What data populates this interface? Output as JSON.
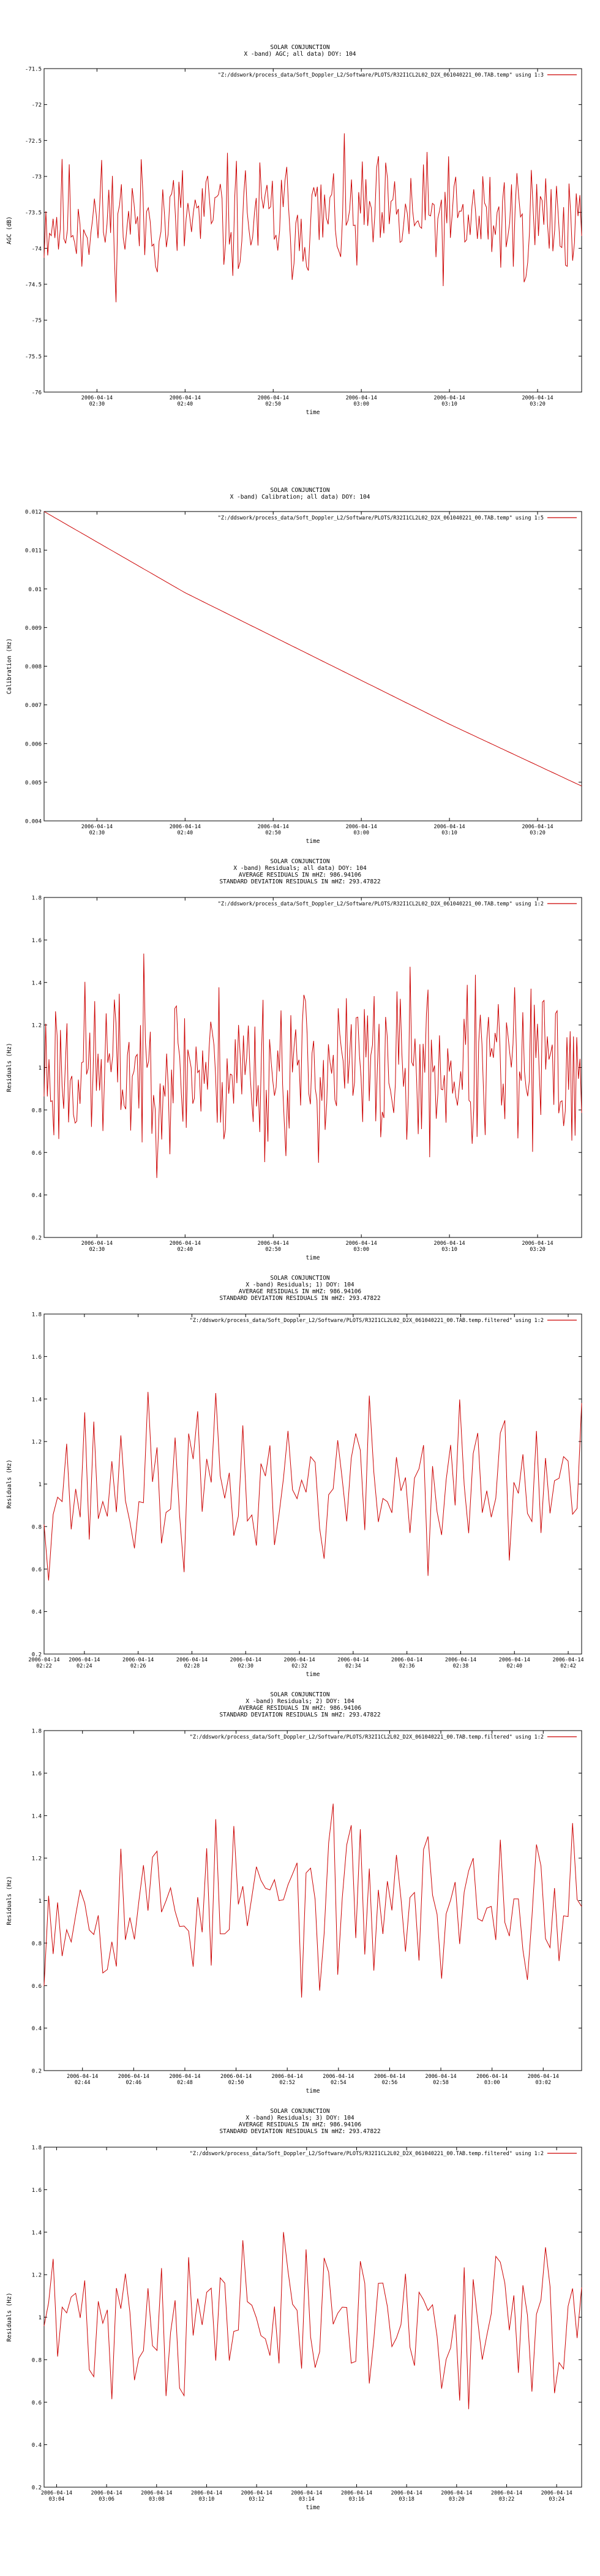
{
  "page": {
    "background": "#ffffff",
    "line_color": "#cc0000",
    "axis_color": "#000000",
    "grid_color": "#bbbbbb"
  },
  "chart_data": [
    {
      "type": "line",
      "title_lines": [
        "SOLAR CONJUNCTION",
        "X -band) AGC; all data) DOY: 104"
      ],
      "ylabel": "AGC (dB)",
      "xlabel": "time",
      "legend": "\"Z:/ddswork/process_data/Soft_Doppler_L2/Software/PLOTS/R32I1CL2L02_D2X_061040221_00.TAB.temp\" using 1:3",
      "legend_position": "top-right",
      "ylim": [
        -76,
        -71.5
      ],
      "yticks": [
        "-71.5",
        "-72",
        "-72.5",
        "-73",
        "-73.5",
        "-74",
        "-74.5",
        "-75",
        "-75.5",
        "-76"
      ],
      "xrange_minutes": [
        144,
        205
      ],
      "xticks": [
        {
          "at": 150,
          "date": "2006-04-14",
          "time": "02:30"
        },
        {
          "at": 160,
          "date": "2006-04-14",
          "time": "02:40"
        },
        {
          "at": 170,
          "date": "2006-04-14",
          "time": "02:50"
        },
        {
          "at": 180,
          "date": "2006-04-14",
          "time": "03:00"
        },
        {
          "at": 190,
          "date": "2006-04-14",
          "time": "03:10"
        },
        {
          "at": 200,
          "date": "2006-04-14",
          "time": "03:20"
        }
      ],
      "series": [
        {
          "kind": "noise",
          "mean": -73.6,
          "amp": 0.9,
          "n": 300,
          "seed": 11
        }
      ]
    },
    {
      "type": "line",
      "title_lines": [
        "SOLAR CONJUNCTION",
        "X -band) Calibration; all data) DOY: 104"
      ],
      "ylabel": "Calibration (Hz)",
      "xlabel": "time",
      "legend": "\"Z:/ddswork/process_data/Soft_Doppler_L2/Software/PLOTS/R32I1CL2L02_D2X_061040221_00.TAB.temp\" using 1:5",
      "legend_position": "top-right",
      "ylim": [
        0.004,
        0.012
      ],
      "yticks": [
        "0.012",
        "0.011",
        "0.01",
        "0.009",
        "0.008",
        "0.007",
        "0.006",
        "0.005",
        "0.004"
      ],
      "xrange_minutes": [
        144,
        205
      ],
      "xticks": [
        {
          "at": 150,
          "date": "2006-04-14",
          "time": "02:30"
        },
        {
          "at": 160,
          "date": "2006-04-14",
          "time": "02:40"
        },
        {
          "at": 170,
          "date": "2006-04-14",
          "time": "02:50"
        },
        {
          "at": 180,
          "date": "2006-04-14",
          "time": "03:00"
        },
        {
          "at": 190,
          "date": "2006-04-14",
          "time": "03:10"
        },
        {
          "at": 200,
          "date": "2006-04-14",
          "time": "03:20"
        }
      ],
      "series": [
        {
          "kind": "curve",
          "x": [
            144,
            160,
            175,
            190,
            205
          ],
          "y": [
            0.012,
            0.0099,
            0.0082,
            0.0065,
            0.0049
          ]
        }
      ]
    },
    {
      "type": "line",
      "title_lines": [
        "SOLAR CONJUNCTION",
        "X -band) Residuals; all data) DOY: 104",
        "AVERAGE RESIDUALS IN mHZ: 986.94106",
        "STANDARD DEVIATION RESIDUALS IN mHZ: 293.47822"
      ],
      "ylabel": "Residuals (Hz)",
      "xlabel": "time",
      "legend": "\"Z:/ddswork/process_data/Soft_Doppler_L2/Software/PLOTS/R32I1CL2L02_D2X_061040221_00.TAB.temp\" using 1:2",
      "legend_position": "top-right",
      "ylim": [
        0.2,
        1.8
      ],
      "yticks": [
        "1.8",
        "1.6",
        "1.4",
        "1.2",
        "1",
        "0.8",
        "0.6",
        "0.4",
        "0.2"
      ],
      "xrange_minutes": [
        144,
        205
      ],
      "xticks": [
        {
          "at": 150,
          "date": "2006-04-14",
          "time": "02:30"
        },
        {
          "at": 160,
          "date": "2006-04-14",
          "time": "02:40"
        },
        {
          "at": 170,
          "date": "2006-04-14",
          "time": "02:50"
        },
        {
          "at": 180,
          "date": "2006-04-14",
          "time": "03:00"
        },
        {
          "at": 190,
          "date": "2006-04-14",
          "time": "03:10"
        },
        {
          "at": 200,
          "date": "2006-04-14",
          "time": "03:20"
        }
      ],
      "series": [
        {
          "kind": "noise",
          "mean": 0.99,
          "amp": 0.42,
          "n": 330,
          "seed": 23
        }
      ]
    },
    {
      "type": "line",
      "title_lines": [
        "SOLAR CONJUNCTION",
        "X -band) Residuals; 1) DOY: 104",
        "AVERAGE RESIDUALS IN mHZ: 986.94106",
        "STANDARD DEVIATION RESIDUALS IN mHZ: 293.47822"
      ],
      "ylabel": "Residuals (Hz)",
      "xlabel": "time",
      "legend": "\"Z:/ddswork/process_data/Soft_Doppler_L2/Software/PLOTS/R32I1CL2L02_D2X_061040221_00.TAB.temp.filtered\" using 1:2",
      "legend_position": "top-right",
      "ylim": [
        0.2,
        1.8
      ],
      "yticks": [
        "1.8",
        "1.6",
        "1.4",
        "1.2",
        "1",
        "0.8",
        "0.6",
        "0.4",
        "0.2"
      ],
      "xrange_minutes": [
        142.5,
        162.5
      ],
      "xticks": [
        {
          "at": 142,
          "date": "2006-04-14",
          "time": "02:22"
        },
        {
          "at": 144,
          "date": "2006-04-14",
          "time": "02:24"
        },
        {
          "at": 146,
          "date": "2006-04-14",
          "time": "02:26"
        },
        {
          "at": 148,
          "date": "2006-04-14",
          "time": "02:28"
        },
        {
          "at": 150,
          "date": "2006-04-14",
          "time": "02:30"
        },
        {
          "at": 152,
          "date": "2006-04-14",
          "time": "02:32"
        },
        {
          "at": 154,
          "date": "2006-04-14",
          "time": "02:34"
        },
        {
          "at": 156,
          "date": "2006-04-14",
          "time": "02:36"
        },
        {
          "at": 158,
          "date": "2006-04-14",
          "time": "02:38"
        },
        {
          "at": 160,
          "date": "2006-04-14",
          "time": "02:40"
        },
        {
          "at": 162,
          "date": "2006-04-14",
          "time": "02:42"
        }
      ],
      "series": [
        {
          "kind": "noise",
          "mean": 0.99,
          "amp": 0.42,
          "n": 120,
          "seed": 37
        }
      ]
    },
    {
      "type": "line",
      "title_lines": [
        "SOLAR CONJUNCTION",
        "X -band) Residuals; 2) DOY: 104",
        "AVERAGE RESIDUALS IN mHZ: 986.94106",
        "STANDARD DEVIATION RESIDUALS IN mHZ: 293.47822"
      ],
      "ylabel": "Residuals (Hz)",
      "xlabel": "time",
      "legend": "\"Z:/ddswork/process_data/Soft_Doppler_L2/Software/PLOTS/R32I1CL2L02_D2X_061040221_00.TAB.temp.filtered\" using 1:2",
      "legend_position": "top-right",
      "ylim": [
        0.2,
        1.8
      ],
      "yticks": [
        "1.8",
        "1.6",
        "1.4",
        "1.2",
        "1",
        "0.8",
        "0.6",
        "0.4",
        "0.2"
      ],
      "xrange_minutes": [
        162.5,
        183.5
      ],
      "xticks": [
        {
          "at": 164,
          "date": "2006-04-14",
          "time": "02:44"
        },
        {
          "at": 166,
          "date": "2006-04-14",
          "time": "02:46"
        },
        {
          "at": 168,
          "date": "2006-04-14",
          "time": "02:48"
        },
        {
          "at": 170,
          "date": "2006-04-14",
          "time": "02:50"
        },
        {
          "at": 172,
          "date": "2006-04-14",
          "time": "02:52"
        },
        {
          "at": 174,
          "date": "2006-04-14",
          "time": "02:54"
        },
        {
          "at": 176,
          "date": "2006-04-14",
          "time": "02:56"
        },
        {
          "at": 178,
          "date": "2006-04-14",
          "time": "02:58"
        },
        {
          "at": 180,
          "date": "2006-04-14",
          "time": "03:00"
        },
        {
          "at": 182,
          "date": "2006-04-14",
          "time": "03:02"
        }
      ],
      "series": [
        {
          "kind": "noise",
          "mean": 0.99,
          "amp": 0.4,
          "n": 120,
          "seed": 53
        }
      ]
    },
    {
      "type": "line",
      "title_lines": [
        "SOLAR CONJUNCTION",
        "X -band) Residuals; 3) DOY: 104",
        "AVERAGE RESIDUALS IN mHZ: 986.94106",
        "STANDARD DEVIATION RESIDUALS IN mHZ: 293.47822"
      ],
      "ylabel": "Residuals (Hz)",
      "xlabel": "time",
      "legend": "\"Z:/ddswork/process_data/Soft_Doppler_L2/Software/PLOTS/R32I1CL2L02_D2X_061040221_00.TAB.temp.filtered\" using 1:2",
      "legend_position": "top-right",
      "ylim": [
        0.2,
        1.8
      ],
      "yticks": [
        "1.8",
        "1.6",
        "1.4",
        "1.2",
        "1",
        "0.8",
        "0.6",
        "0.4",
        "0.2"
      ],
      "xrange_minutes": [
        183.5,
        205
      ],
      "xticks": [
        {
          "at": 184,
          "date": "2006-04-14",
          "time": "03:04"
        },
        {
          "at": 186,
          "date": "2006-04-14",
          "time": "03:06"
        },
        {
          "at": 188,
          "date": "2006-04-14",
          "time": "03:08"
        },
        {
          "at": 190,
          "date": "2006-04-14",
          "time": "03:10"
        },
        {
          "at": 192,
          "date": "2006-04-14",
          "time": "03:12"
        },
        {
          "at": 194,
          "date": "2006-04-14",
          "time": "03:14"
        },
        {
          "at": 196,
          "date": "2006-04-14",
          "time": "03:16"
        },
        {
          "at": 198,
          "date": "2006-04-14",
          "time": "03:18"
        },
        {
          "at": 200,
          "date": "2006-04-14",
          "time": "03:20"
        },
        {
          "at": 202,
          "date": "2006-04-14",
          "time": "03:22"
        },
        {
          "at": 204,
          "date": "2006-04-14",
          "time": "03:24"
        }
      ],
      "series": [
        {
          "kind": "noise",
          "mean": 0.99,
          "amp": 0.4,
          "n": 120,
          "seed": 71
        }
      ]
    }
  ]
}
